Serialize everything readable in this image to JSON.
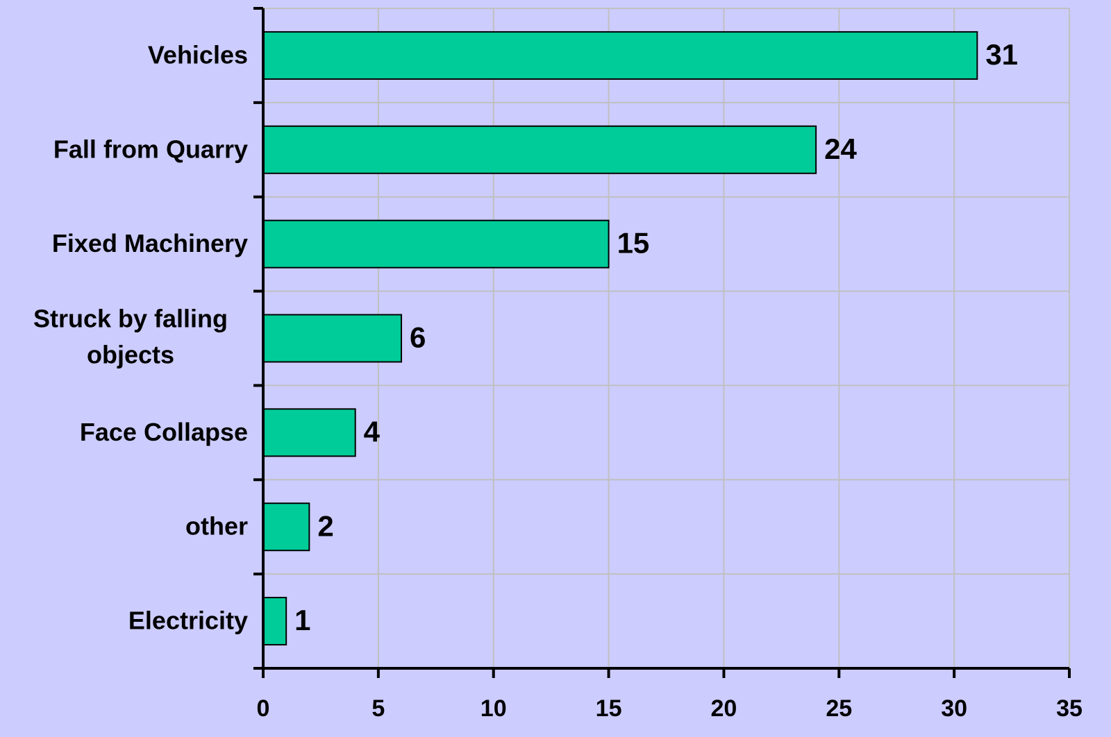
{
  "chart_data": {
    "type": "bar",
    "orientation": "horizontal",
    "categories": [
      "Vehicles",
      "Fall from Quarry",
      "Fixed Machinery",
      "Struck by falling objects",
      "Face Collapse",
      "other",
      "Electricity"
    ],
    "values": [
      31,
      24,
      15,
      6,
      4,
      2,
      1
    ],
    "color": "#00cc99",
    "xlim": [
      0,
      35
    ],
    "xticks": [
      0,
      5,
      10,
      15,
      20,
      25,
      30,
      35
    ],
    "grid": true
  }
}
